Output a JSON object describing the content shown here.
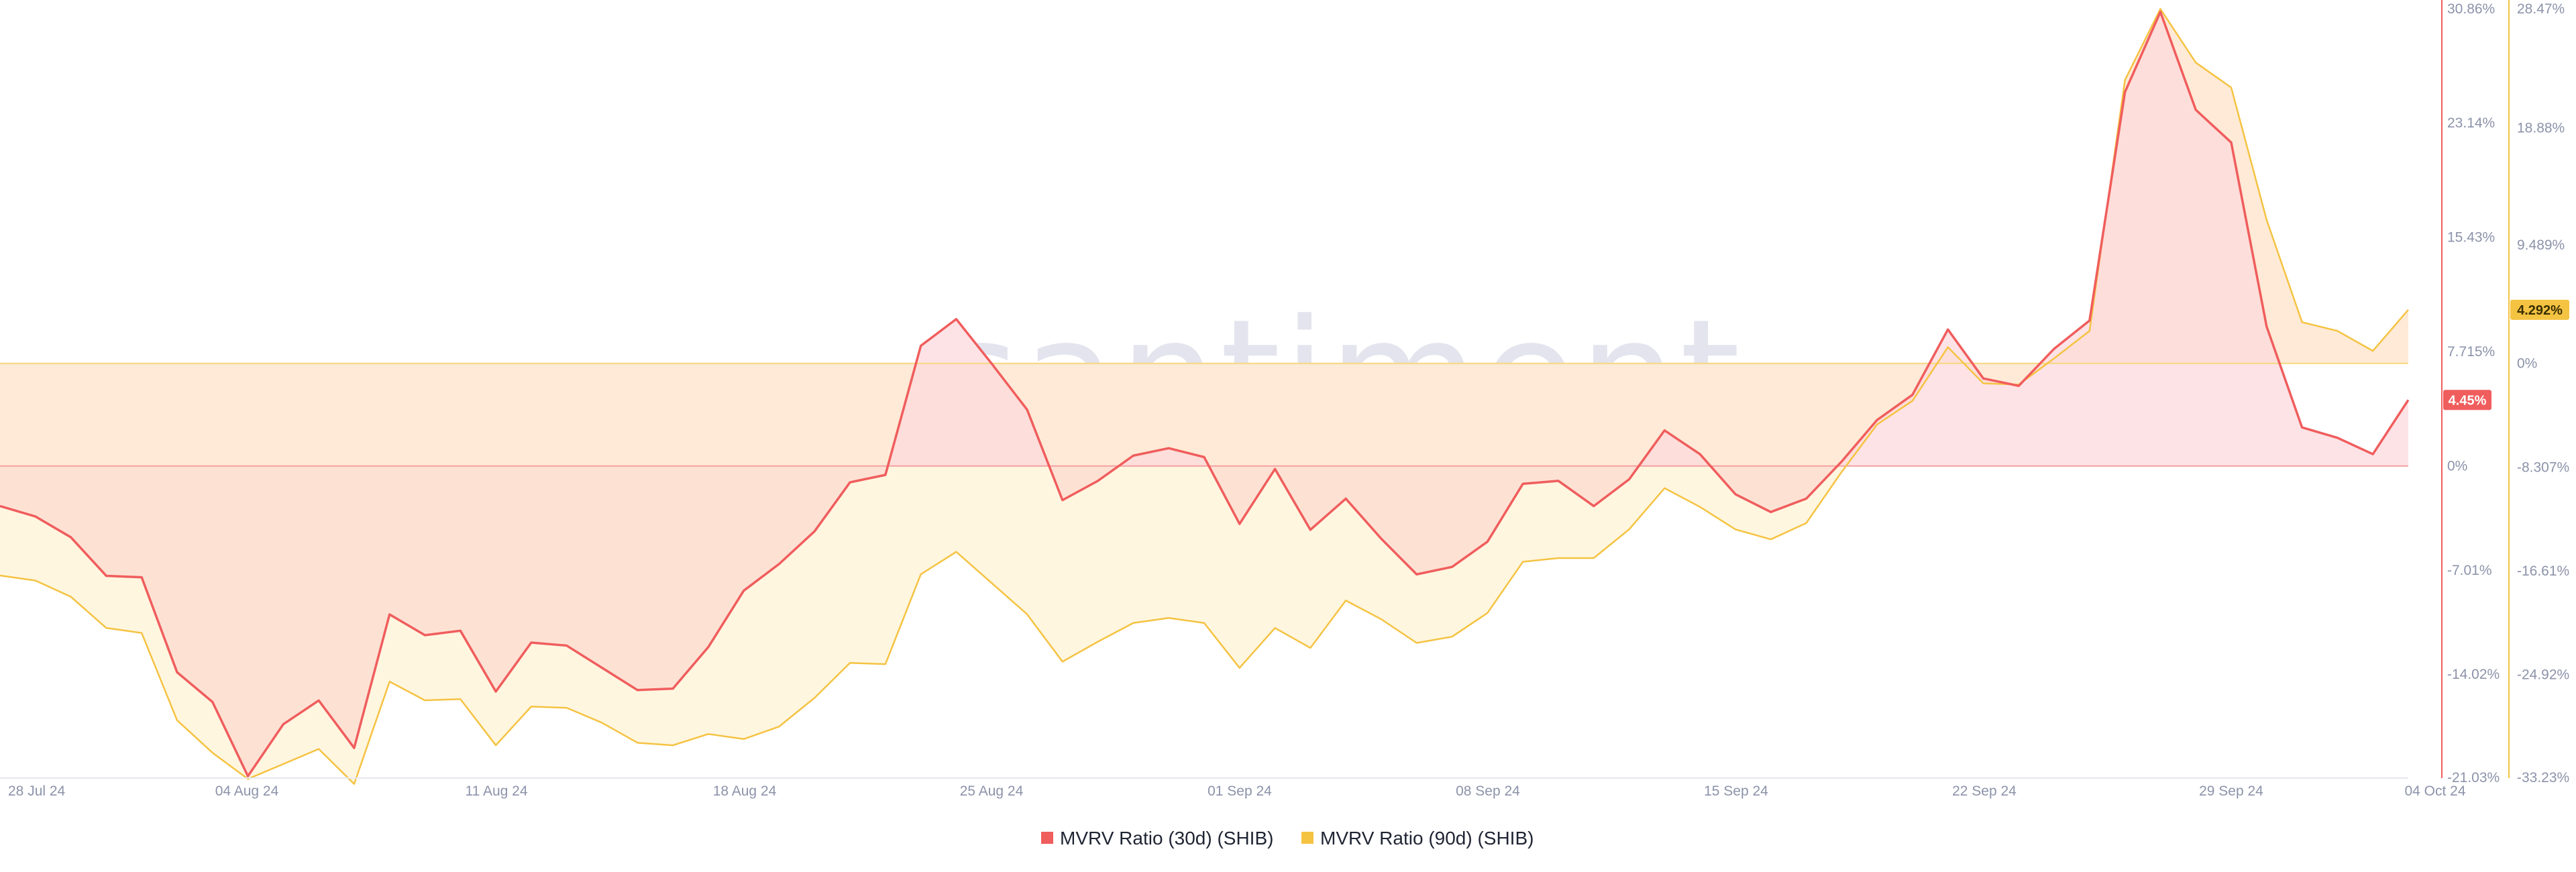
{
  "watermark": "santiment",
  "colors": {
    "series_30d": "#f05d5d",
    "series_90d": "#f5c342",
    "area_30d_below": "#fde2d4",
    "area_30d_above": "#fde3e6",
    "area_90d": "#fff6e0",
    "axis_text": "#8c93aa",
    "grid_zero_30d": "#f3a1a1",
    "grid_zero_90d": "#f7d77e",
    "badge_90d_text": "#3a2f00",
    "badge_30d_text": "#ffffff"
  },
  "chart_data": {
    "type": "area",
    "x_axis": {
      "ticks": [
        "28 Jul 24",
        "04 Aug 24",
        "11 Aug 24",
        "18 Aug 24",
        "25 Aug 24",
        "01 Sep 24",
        "08 Sep 24",
        "15 Sep 24",
        "22 Sep 24",
        "29 Sep 24",
        "04 Oct 24"
      ]
    },
    "y_axis_left": {
      "series": "MVRV Ratio (30d) (SHIB)",
      "range": [
        -21.03,
        30.86
      ],
      "ticks": [
        "30.86%",
        "23.14%",
        "15.43%",
        "7.715%",
        "0%",
        "-7.01%",
        "-14.02%",
        "-21.03%"
      ],
      "tick_values": [
        30.86,
        23.14,
        15.43,
        7.715,
        0,
        -7.01,
        -14.02,
        -21.03
      ],
      "current_value_label": "4.45%",
      "current_value": 4.45
    },
    "y_axis_right": {
      "series": "MVRV Ratio (90d) (SHIB)",
      "range": [
        -33.23,
        28.47
      ],
      "ticks": [
        "28.47%",
        "18.88%",
        "9.489%",
        "0%",
        "-8.307%",
        "-16.61%",
        "-24.92%",
        "-33.23%"
      ],
      "tick_values": [
        28.47,
        18.88,
        9.489,
        0,
        -8.307,
        -16.61,
        -24.92,
        -33.23
      ],
      "current_value_label": "4.292%",
      "current_value": 4.292
    },
    "legend_position": "bottom-center",
    "grid": false,
    "series": [
      {
        "name": "MVRV Ratio (30d) (SHIB)",
        "axis": "left",
        "values": [
          -2.7,
          -3.4,
          -4.8,
          -7.4,
          -7.5,
          -13.9,
          -15.9,
          -20.9,
          -17.4,
          -15.8,
          -19.0,
          -10.0,
          -11.4,
          -11.1,
          -15.2,
          -11.9,
          -12.1,
          -13.6,
          -15.1,
          -15.0,
          -12.2,
          -8.4,
          -6.6,
          -4.4,
          -1.1,
          -0.6,
          8.1,
          9.9,
          6.9,
          3.8,
          -2.3,
          -1.0,
          0.7,
          1.2,
          0.6,
          -3.9,
          -0.2,
          -4.3,
          -2.2,
          -4.9,
          -7.3,
          -6.8,
          -5.1,
          -1.2,
          -1.0,
          -2.7,
          -0.9,
          2.4,
          0.8,
          -1.9,
          -3.1,
          -2.2,
          0.3,
          3.1,
          4.8,
          9.2,
          5.9,
          5.4,
          7.9,
          9.8,
          25.2,
          30.6,
          24.0,
          21.8,
          9.4,
          2.6,
          1.9,
          0.8,
          4.45
        ]
      },
      {
        "name": "MVRV Ratio (90d) (SHIB)",
        "axis": "right",
        "values": [
          -17.0,
          -17.4,
          -18.7,
          -21.2,
          -21.6,
          -28.6,
          -31.2,
          -33.3,
          -32.1,
          -30.9,
          -33.7,
          -25.5,
          -27.0,
          -26.9,
          -30.6,
          -27.5,
          -27.6,
          -28.8,
          -30.4,
          -30.6,
          -29.7,
          -30.1,
          -29.1,
          -26.8,
          -24.0,
          -24.1,
          -16.9,
          -15.1,
          -17.6,
          -20.1,
          -23.9,
          -22.3,
          -20.8,
          -20.4,
          -20.8,
          -24.4,
          -21.2,
          -22.8,
          -19.0,
          -20.5,
          -22.4,
          -21.9,
          -20.0,
          -15.9,
          -15.6,
          -15.6,
          -13.3,
          -10.0,
          -11.5,
          -13.3,
          -14.1,
          -12.8,
          -8.7,
          -4.9,
          -3.0,
          1.3,
          -1.6,
          -1.7,
          0.4,
          2.6,
          22.7,
          28.4,
          24.1,
          22.1,
          11.5,
          3.3,
          2.6,
          1.0,
          4.292
        ]
      }
    ]
  }
}
